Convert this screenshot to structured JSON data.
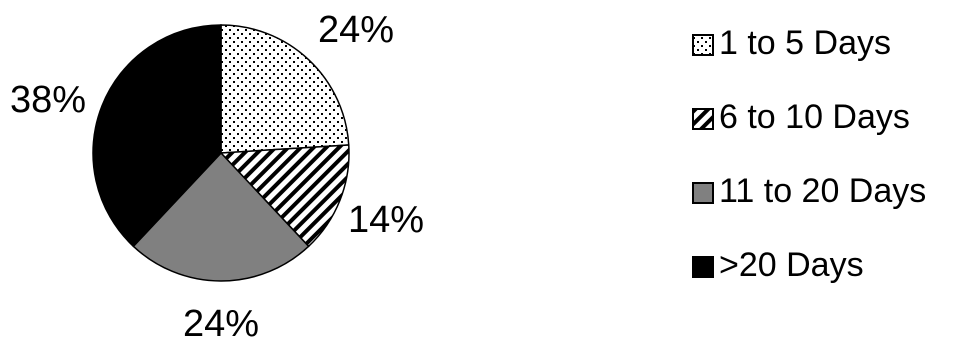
{
  "chart_data": {
    "type": "pie",
    "title": "",
    "categories": [
      "1 to 5 Days",
      "6 to 10 Days",
      "11 to 20 Days",
      ">20 Days"
    ],
    "values": [
      24,
      14,
      24,
      38
    ],
    "labels": [
      "24%",
      "14%",
      "24%",
      "38%"
    ],
    "legend": "right",
    "colors": [
      "#ffffff",
      "#ffffff",
      "#808080",
      "#000000"
    ],
    "fills": [
      "dots",
      "diagonal-stripes",
      "solid-gray",
      "solid-black"
    ]
  }
}
